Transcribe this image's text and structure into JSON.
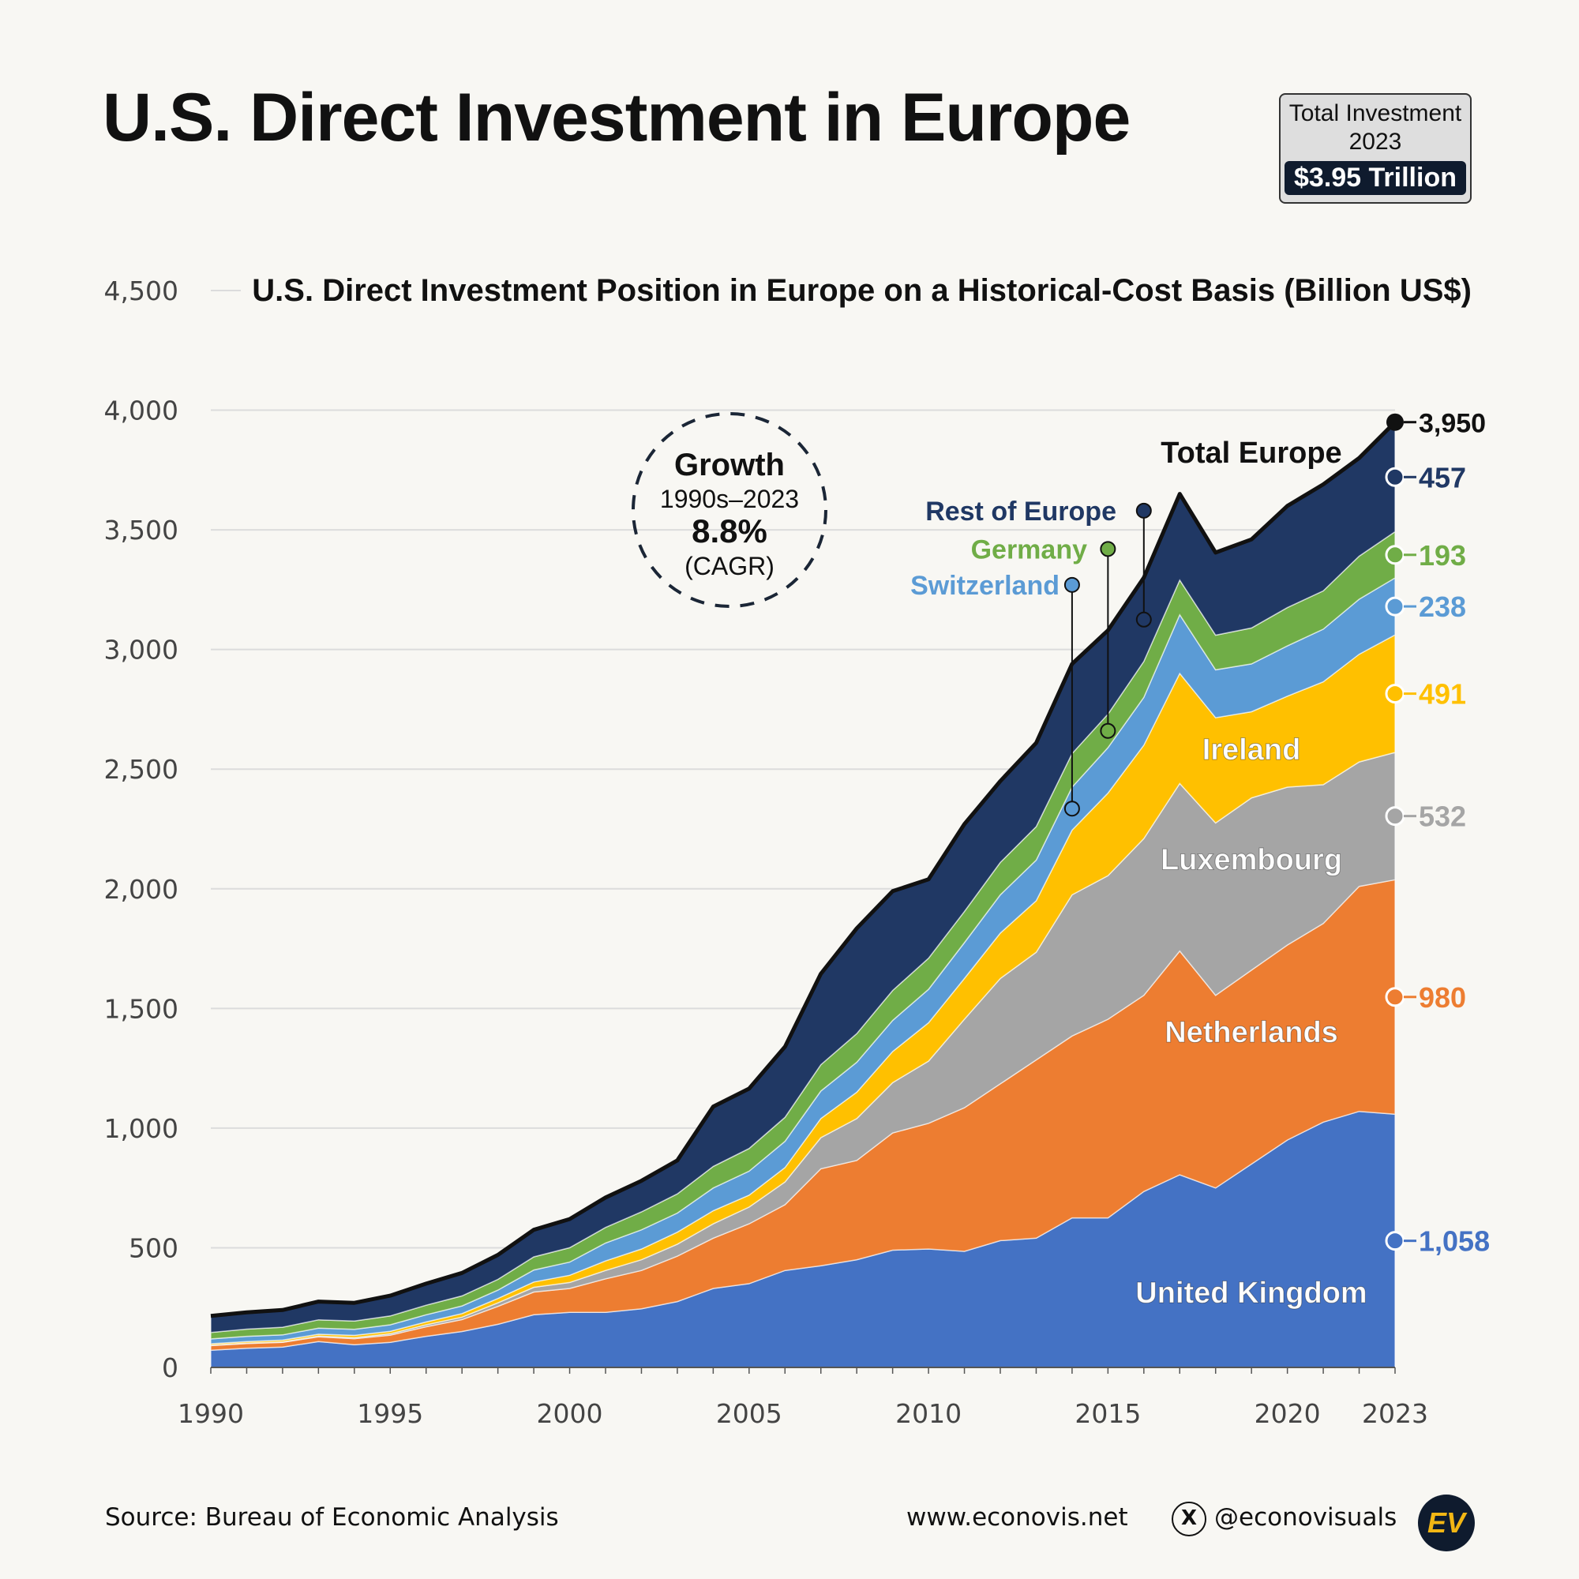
{
  "title": "U.S. Direct Investment in Europe",
  "total_box": {
    "label_line1": "Total Investment",
    "label_line2": "2023",
    "value": "$3.95 Trillion"
  },
  "growth": {
    "title": "Growth",
    "period": "1990s–2023",
    "value": "8.8%",
    "unit": "(CAGR)"
  },
  "footer": {
    "source": "Source: Bureau of Economic Analysis",
    "website": "www.econovis.net",
    "handle": "@econovisuals",
    "logo": "EV",
    "x_icon": "x-logo-icon"
  },
  "chart_data": {
    "type": "area",
    "stacked": true,
    "title": "U.S. Direct Investment Position in Europe on a Historical-Cost Basis (Billion US$)",
    "xlabel": "",
    "ylabel": "",
    "xlim": [
      1990,
      2023
    ],
    "ylim": [
      0,
      4500
    ],
    "x_ticks": [
      1990,
      1995,
      2000,
      2005,
      2010,
      2015,
      2020,
      2023
    ],
    "y_ticks": [
      0,
      500,
      1000,
      1500,
      2000,
      2500,
      3000,
      3500,
      4000,
      4500
    ],
    "y_tick_labels": [
      "0",
      "500",
      "1,000",
      "1,500",
      "2,000",
      "2,500",
      "3,000",
      "3,500",
      "4,000",
      "4,500"
    ],
    "grid": "horizontal",
    "x": [
      1990,
      1991,
      1992,
      1993,
      1994,
      1995,
      1996,
      1997,
      1998,
      1999,
      2000,
      2001,
      2002,
      2003,
      2004,
      2005,
      2006,
      2007,
      2008,
      2009,
      2010,
      2011,
      2012,
      2013,
      2014,
      2015,
      2016,
      2017,
      2018,
      2019,
      2020,
      2021,
      2022,
      2023
    ],
    "series": [
      {
        "name": "United Kingdom",
        "color": "#4472c4",
        "end_label": "1,058",
        "values": [
          72,
          80,
          85,
          108,
          95,
          105,
          130,
          150,
          180,
          220,
          230,
          230,
          245,
          275,
          330,
          350,
          405,
          425,
          450,
          490,
          495,
          485,
          530,
          540,
          625,
          625,
          735,
          805,
          750,
          850,
          950,
          1025,
          1070,
          1058
        ]
      },
      {
        "name": "Netherlands",
        "color": "#ed7d31",
        "end_label": "980",
        "values": [
          19,
          20,
          20,
          20,
          25,
          30,
          40,
          50,
          75,
          95,
          100,
          140,
          160,
          190,
          210,
          250,
          275,
          405,
          415,
          490,
          525,
          600,
          655,
          745,
          760,
          830,
          820,
          935,
          805,
          810,
          815,
          830,
          940,
          980
        ]
      },
      {
        "name": "Luxembourg",
        "color": "#a5a5a5",
        "end_label": "532",
        "values": [
          2,
          2,
          2,
          3,
          4,
          6,
          8,
          10,
          15,
          20,
          25,
          35,
          45,
          50,
          60,
          70,
          95,
          130,
          175,
          210,
          260,
          370,
          440,
          450,
          590,
          600,
          655,
          700,
          720,
          720,
          660,
          580,
          520,
          532
        ]
      },
      {
        "name": "Ireland",
        "color": "#ffc000",
        "end_label": "491",
        "values": [
          6,
          6,
          7,
          8,
          10,
          10,
          12,
          15,
          18,
          22,
          30,
          40,
          45,
          50,
          55,
          50,
          60,
          80,
          110,
          130,
          160,
          170,
          190,
          215,
          270,
          345,
          390,
          460,
          440,
          360,
          380,
          430,
          450,
          491
        ]
      },
      {
        "name": "Switzerland",
        "color": "#5b9bd5",
        "end_label": "238",
        "values": [
          20,
          22,
          22,
          25,
          25,
          27,
          30,
          32,
          35,
          50,
          55,
          75,
          80,
          80,
          95,
          100,
          110,
          115,
          125,
          130,
          140,
          150,
          160,
          170,
          180,
          190,
          200,
          245,
          200,
          200,
          210,
          220,
          230,
          238
        ]
      },
      {
        "name": "Germany",
        "color": "#70ad47",
        "end_label": "193",
        "values": [
          27,
          30,
          32,
          35,
          35,
          37,
          40,
          42,
          45,
          55,
          60,
          65,
          75,
          80,
          90,
          95,
          100,
          110,
          120,
          125,
          130,
          130,
          135,
          140,
          140,
          140,
          150,
          145,
          145,
          150,
          160,
          160,
          180,
          193
        ]
      },
      {
        "name": "Rest of Europe",
        "color": "#203864",
        "end_label": "457",
        "values": [
          69,
          70,
          72,
          76,
          76,
          85,
          90,
          96,
          102,
          113,
          120,
          125,
          130,
          140,
          250,
          250,
          295,
          380,
          440,
          415,
          330,
          365,
          340,
          350,
          375,
          350,
          350,
          360,
          345,
          370,
          425,
          445,
          410,
          457
        ]
      }
    ],
    "total": {
      "name": "Total Europe",
      "end_label": "3,950",
      "values": [
        215,
        230,
        240,
        275,
        270,
        300,
        350,
        395,
        470,
        575,
        620,
        710,
        780,
        865,
        1090,
        1165,
        1340,
        1645,
        1835,
        1990,
        2040,
        2270,
        2450,
        2610,
        2940,
        3080,
        3300,
        3650,
        3405,
        3460,
        3600,
        3690,
        3800,
        3950
      ]
    }
  }
}
